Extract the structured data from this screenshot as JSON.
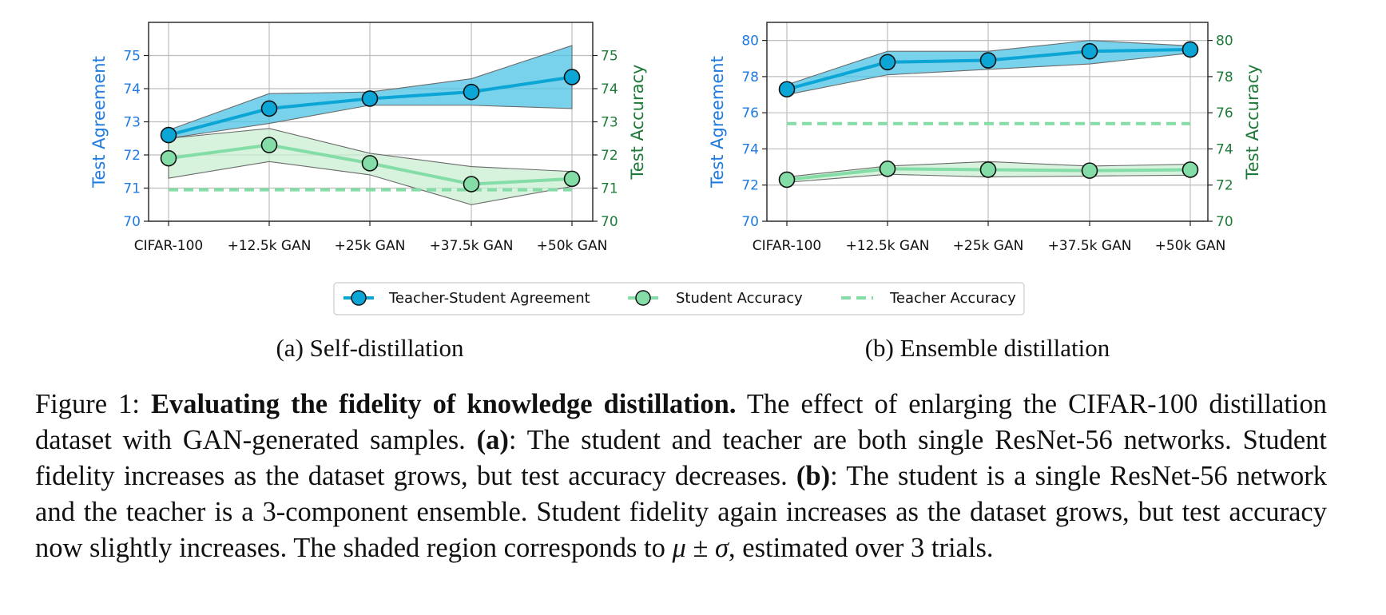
{
  "colors": {
    "agreement": "#0ba5d6",
    "agreement_band": "#4cc3e6",
    "student": "#84dca6",
    "student_band": "#c9efd2",
    "teacher": "#84dca6",
    "left_axis": "#1f7be0",
    "right_axis": "#1e7a39",
    "grid": "#bdbdbd"
  },
  "legend": {
    "agreement": "Teacher-Student Agreement",
    "student": "Student Accuracy",
    "teacher": "Teacher Accuracy"
  },
  "caption": {
    "fig_label": "Figure 1:",
    "bold_title": "Evaluating the fidelity of knowledge distillation.",
    "text1": " The effect of enlarging the CIFAR-100 distillation dataset with GAN-generated samples. ",
    "a_label": "(a)",
    "text2": ": The student and teacher are both single ResNet-56 networks. Student fidelity increases as the dataset grows, but test accuracy decreases. ",
    "b_label": "(b)",
    "text3": ": The student is a single ResNet-56 network and the teacher is a 3-component ensemble. Student fidelity again increases as the dataset grows, but test accuracy now slightly increases. The shaded region corresponds to ",
    "mu": "μ",
    "pm": " ± ",
    "sigma": "σ",
    "text4": ", estimated over 3 trials."
  },
  "chart_data": [
    {
      "type": "line",
      "subcaption": "(a) Self-distillation",
      "categories": [
        "CIFAR-100",
        "+12.5k GAN",
        "+25k GAN",
        "+37.5k GAN",
        "+50k GAN"
      ],
      "ylabel_left": "Test Agreement",
      "ylabel_right": "Test Accuracy",
      "ylim": [
        70,
        76
      ],
      "yticks_left": [
        70,
        71,
        72,
        73,
        74,
        75
      ],
      "yticks_right": [
        70,
        71,
        72,
        73,
        74,
        75
      ],
      "grid": true,
      "series": [
        {
          "name": "Teacher-Student Agreement",
          "values": [
            72.6,
            73.4,
            73.7,
            73.9,
            74.35
          ],
          "lower": [
            72.5,
            72.95,
            73.5,
            73.5,
            73.4
          ],
          "upper": [
            72.75,
            73.85,
            73.9,
            74.3,
            75.3
          ]
        },
        {
          "name": "Student Accuracy",
          "values": [
            71.9,
            72.3,
            71.75,
            71.12,
            71.28
          ],
          "lower": [
            71.3,
            71.8,
            71.4,
            70.5,
            71.05
          ],
          "upper": [
            72.5,
            72.8,
            72.05,
            71.65,
            71.5
          ]
        },
        {
          "name": "Teacher Accuracy",
          "values": [
            70.95,
            70.95,
            70.95,
            70.95,
            70.95
          ]
        }
      ]
    },
    {
      "type": "line",
      "subcaption": "(b) Ensemble distillation",
      "categories": [
        "CIFAR-100",
        "+12.5k GAN",
        "+25k GAN",
        "+37.5k GAN",
        "+50k GAN"
      ],
      "ylabel_left": "Test Agreement",
      "ylabel_right": "Test Accuracy",
      "ylim": [
        70,
        81
      ],
      "yticks_left": [
        70,
        72,
        74,
        76,
        78,
        80
      ],
      "yticks_right": [
        70,
        72,
        74,
        76,
        78,
        80
      ],
      "grid": true,
      "series": [
        {
          "name": "Teacher-Student Agreement",
          "values": [
            77.3,
            78.8,
            78.9,
            79.4,
            79.5
          ],
          "lower": [
            77.0,
            78.1,
            78.4,
            78.7,
            79.3
          ],
          "upper": [
            77.55,
            79.4,
            79.4,
            80.0,
            79.7
          ]
        },
        {
          "name": "Student Accuracy",
          "values": [
            72.3,
            72.9,
            72.85,
            72.8,
            72.85
          ],
          "lower": [
            72.15,
            72.6,
            72.45,
            72.5,
            72.55
          ],
          "upper": [
            72.45,
            73.05,
            73.3,
            73.05,
            73.15
          ]
        },
        {
          "name": "Teacher Accuracy",
          "values": [
            75.4,
            75.4,
            75.4,
            75.4,
            75.4
          ]
        }
      ]
    }
  ]
}
